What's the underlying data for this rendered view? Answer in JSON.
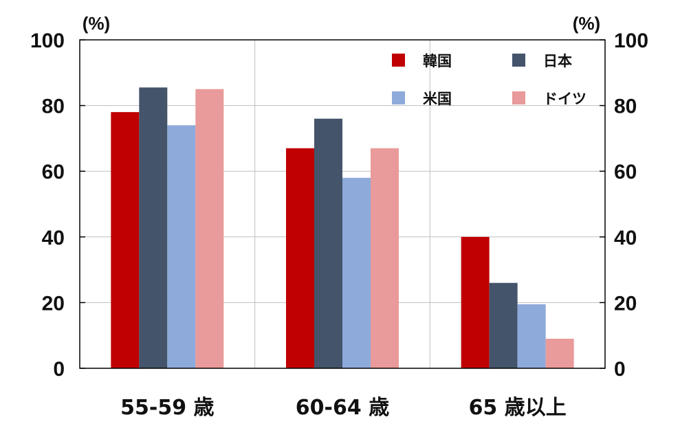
{
  "chart_data": {
    "type": "bar",
    "categories": [
      "55-59 歳",
      "60-64 歳",
      "65 歳以上"
    ],
    "series": [
      {
        "name": "韓国",
        "values": [
          78,
          67,
          40
        ],
        "color": "#c00000"
      },
      {
        "name": "日本",
        "values": [
          85.5,
          76,
          26
        ],
        "color": "#44546a"
      },
      {
        "name": "米国",
        "values": [
          74,
          58,
          19.5
        ],
        "color": "#8eaadb"
      },
      {
        "name": "ドイツ",
        "values": [
          85,
          67,
          9
        ],
        "color": "#e99a9a"
      }
    ],
    "ylim": [
      0,
      100
    ],
    "yticks": [
      "0",
      "20",
      "40",
      "60",
      "80",
      "100"
    ],
    "y_unit_left": "(%)",
    "y_unit_right": "(%)",
    "title": "",
    "xlabel": "",
    "ylabel": "",
    "grid": true,
    "legend_position": "top-right",
    "gridline_color": "#bfbfbf",
    "axis_color": "#000000"
  }
}
